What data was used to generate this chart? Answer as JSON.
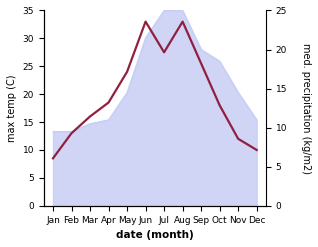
{
  "months": [
    "Jan",
    "Feb",
    "Mar",
    "Apr",
    "May",
    "Jun",
    "Jul",
    "Aug",
    "Sep",
    "Oct",
    "Nov",
    "Dec"
  ],
  "temperature": [
    8.5,
    13.0,
    16.0,
    18.5,
    24.0,
    33.0,
    27.5,
    33.0,
    25.5,
    18.0,
    12.0,
    10.0
  ],
  "precipitation": [
    9.5,
    9.5,
    10.5,
    11.0,
    14.5,
    21.5,
    25.0,
    25.0,
    20.0,
    18.5,
    14.5,
    11.0
  ],
  "temp_color": "#902040",
  "precip_fill_color": "#c8cef5",
  "precip_fill_alpha": 0.85,
  "temp_ylim": [
    0,
    35
  ],
  "precip_ylim": [
    0,
    25
  ],
  "temp_yticks": [
    0,
    5,
    10,
    15,
    20,
    25,
    30,
    35
  ],
  "precip_yticks": [
    0,
    5,
    10,
    15,
    20,
    25
  ],
  "ylabel_left": "max temp (C)",
  "ylabel_right": "med. precipitation (kg/m2)",
  "xlabel": "date (month)",
  "line_width": 1.6,
  "ylabel_fontsize": 7,
  "tick_fontsize": 6.5,
  "xlabel_fontsize": 7.5
}
